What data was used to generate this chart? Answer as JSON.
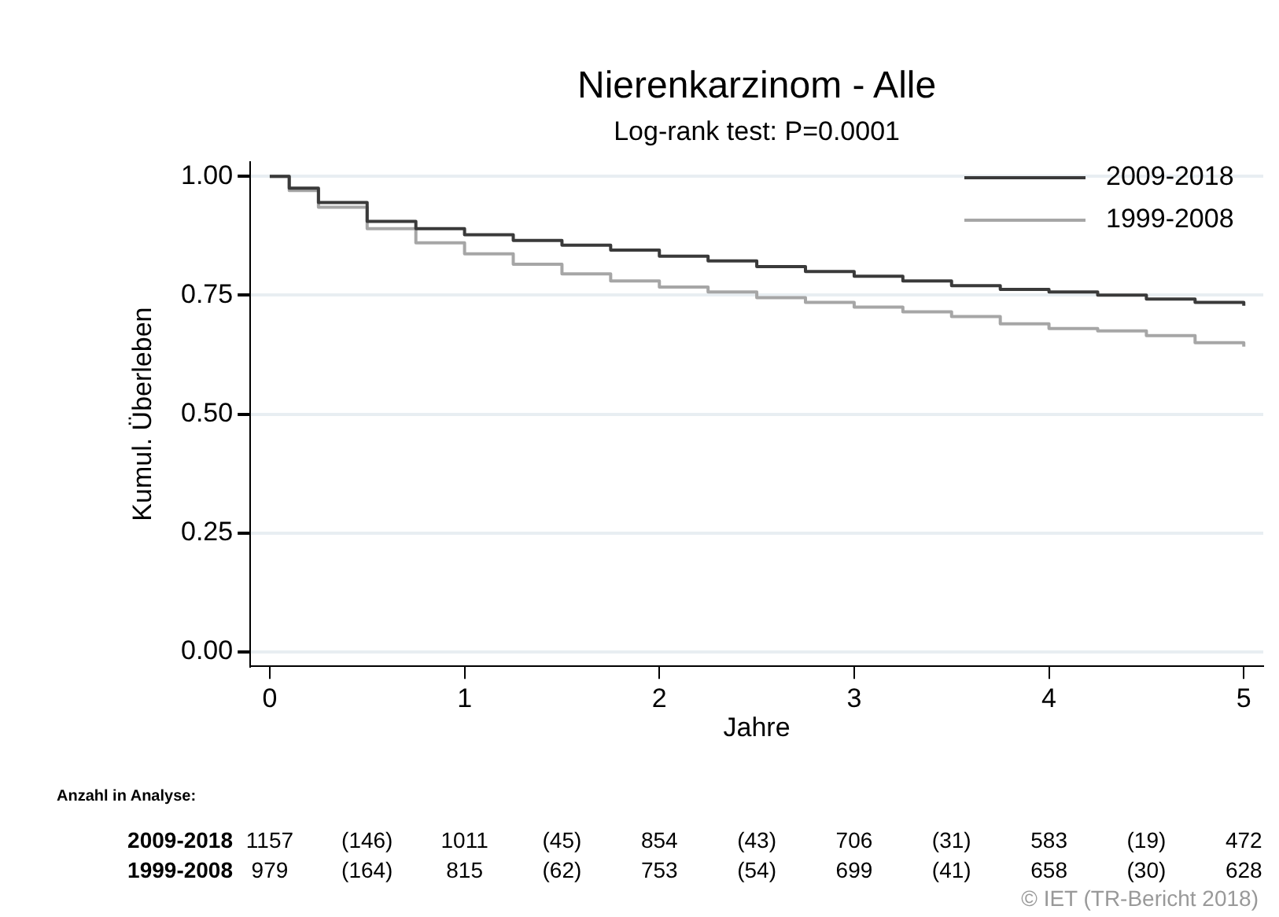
{
  "chart_data": {
    "type": "step",
    "title": "Nierenkarzinom - Alle",
    "subtitle": "Log-rank test: P=0.0001",
    "xlabel": "Jahre",
    "ylabel": "Kumul. Überleben",
    "x": [
      0,
      0.1,
      0.25,
      0.5,
      0.75,
      1,
      1.25,
      1.5,
      1.75,
      2,
      2.25,
      2.5,
      2.75,
      3,
      3.25,
      3.5,
      3.75,
      4,
      4.25,
      4.5,
      4.75,
      5
    ],
    "series": [
      {
        "name": "2009-2018",
        "color": "#3a3a3a",
        "values": [
          1.0,
          0.975,
          0.945,
          0.905,
          0.89,
          0.877,
          0.865,
          0.855,
          0.845,
          0.832,
          0.822,
          0.81,
          0.8,
          0.79,
          0.78,
          0.77,
          0.762,
          0.757,
          0.75,
          0.742,
          0.735,
          0.728
        ]
      },
      {
        "name": "1999-2008",
        "color": "#a6a6a6",
        "values": [
          1.0,
          0.97,
          0.935,
          0.89,
          0.86,
          0.837,
          0.815,
          0.795,
          0.78,
          0.767,
          0.757,
          0.745,
          0.735,
          0.725,
          0.715,
          0.705,
          0.69,
          0.68,
          0.675,
          0.665,
          0.65,
          0.642
        ]
      }
    ],
    "xlim": [
      -0.1,
      5.1
    ],
    "xticks": [
      0,
      1,
      2,
      3,
      4,
      5
    ],
    "ylim": [
      -0.03,
      1.03
    ],
    "yticks": [
      {
        "value": 0,
        "label": "0.00"
      },
      {
        "value": 0.25,
        "label": "0.25"
      },
      {
        "value": 0.5,
        "label": "0.50"
      },
      {
        "value": 0.75,
        "label": "0.75"
      },
      {
        "value": 1,
        "label": "1.00"
      }
    ],
    "grid": "y",
    "legend": "top right",
    "marker": "none",
    "line_style": "solid",
    "annotations": [
      "Anzahl in Analyse:",
      "2009-2018",
      "1157",
      "(146)",
      "1011",
      "(45)",
      "854",
      "(43)",
      "706",
      "(31)",
      "583",
      "(19)",
      "472",
      "1999-2008",
      "979",
      "(164)",
      "815",
      "(62)",
      "753",
      "(54)",
      "699",
      "(41)",
      "658",
      "(30)",
      "628",
      "© IET (TR-Bericht 2018)"
    ]
  }
}
